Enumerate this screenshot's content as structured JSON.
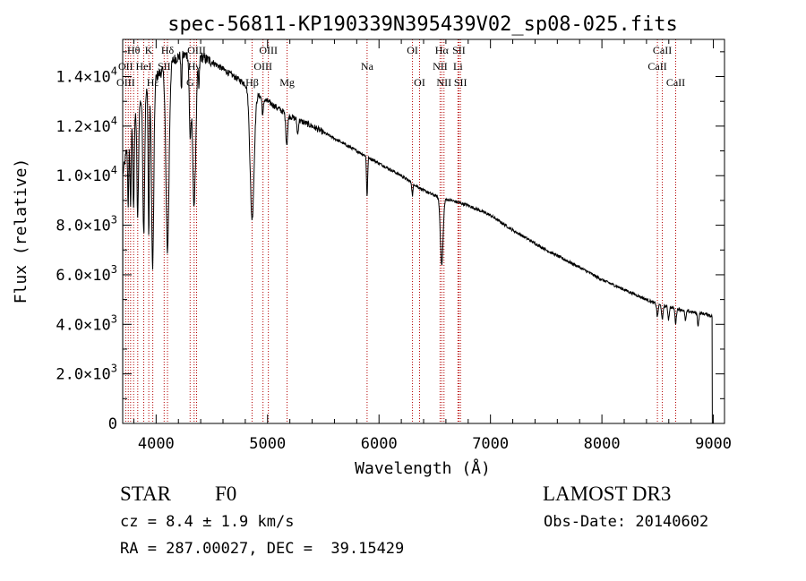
{
  "chart_data": {
    "type": "line",
    "title": "spec-56811-KP190339N395439V02_sp08-025.fits",
    "xlabel": "Wavelength (Å)",
    "ylabel": "Flux (relative)",
    "xlim": [
      3700,
      9100
    ],
    "ylim": [
      0,
      15500
    ],
    "x_ticks": [
      4000,
      5000,
      6000,
      7000,
      8000,
      9000
    ],
    "x_tick_labels": [
      "4000",
      "5000",
      "6000",
      "7000",
      "8000",
      "9000"
    ],
    "y_ticks": [
      0,
      2000,
      4000,
      6000,
      8000,
      10000,
      12000,
      14000
    ],
    "y_tick_labels": [
      {
        "mantissa": "0",
        "exp": ""
      },
      {
        "mantissa": "2.0×10",
        "exp": "3"
      },
      {
        "mantissa": "4.0×10",
        "exp": "3"
      },
      {
        "mantissa": "6.0×10",
        "exp": "3"
      },
      {
        "mantissa": "8.0×10",
        "exp": "3"
      },
      {
        "mantissa": "1.0×10",
        "exp": "4"
      },
      {
        "mantissa": "1.2×10",
        "exp": "4"
      },
      {
        "mantissa": "1.4×10",
        "exp": "4"
      }
    ],
    "continuum": [
      [
        3700,
        10000
      ],
      [
        3720,
        10600
      ],
      [
        3760,
        11600
      ],
      [
        3800,
        12400
      ],
      [
        3850,
        12900
      ],
      [
        3900,
        13300
      ],
      [
        3950,
        13600
      ],
      [
        4000,
        14000
      ],
      [
        4050,
        14200
      ],
      [
        4100,
        14500
      ],
      [
        4200,
        14800
      ],
      [
        4300,
        14900
      ],
      [
        4400,
        14800
      ],
      [
        4500,
        14600
      ],
      [
        4600,
        14300
      ],
      [
        4700,
        14000
      ],
      [
        4800,
        13700
      ],
      [
        4900,
        13300
      ],
      [
        5000,
        13000
      ],
      [
        5100,
        12700
      ],
      [
        5200,
        12400
      ],
      [
        5400,
        12000
      ],
      [
        5600,
        11500
      ],
      [
        5800,
        11000
      ],
      [
        6000,
        10500
      ],
      [
        6200,
        10000
      ],
      [
        6400,
        9400
      ],
      [
        6550,
        9100
      ],
      [
        6650,
        9000
      ],
      [
        6800,
        8800
      ],
      [
        7000,
        8400
      ],
      [
        7200,
        7800
      ],
      [
        7500,
        7000
      ],
      [
        7800,
        6300
      ],
      [
        8000,
        5800
      ],
      [
        8200,
        5400
      ],
      [
        8400,
        5000
      ],
      [
        8500,
        4800
      ],
      [
        8700,
        4600
      ],
      [
        8800,
        4500
      ],
      [
        8950,
        4400
      ],
      [
        9000,
        4300
      ]
    ],
    "absorption_features": [
      {
        "center": 3750,
        "depth": 2500,
        "width": 5
      },
      {
        "center": 3771,
        "depth": 3000,
        "width": 5
      },
      {
        "center": 3798,
        "depth": 3500,
        "width": 6
      },
      {
        "center": 3835,
        "depth": 4500,
        "width": 7
      },
      {
        "center": 3889,
        "depth": 5500,
        "width": 8
      },
      {
        "center": 3934,
        "depth": 6000,
        "width": 5
      },
      {
        "center": 3969,
        "depth": 7500,
        "width": 10
      },
      {
        "center": 4102,
        "depth": 7500,
        "width": 14
      },
      {
        "center": 4227,
        "depth": 1500,
        "width": 4
      },
      {
        "center": 4305,
        "depth": 3000,
        "width": 8
      },
      {
        "center": 4341,
        "depth": 6000,
        "width": 15
      },
      {
        "center": 4384,
        "depth": 1200,
        "width": 5
      },
      {
        "center": 4861,
        "depth": 5200,
        "width": 18
      },
      {
        "center": 4957,
        "depth": 700,
        "width": 6
      },
      {
        "center": 5172,
        "depth": 1200,
        "width": 8
      },
      {
        "center": 5270,
        "depth": 600,
        "width": 6
      },
      {
        "center": 5893,
        "depth": 1600,
        "width": 5
      },
      {
        "center": 6300,
        "depth": 500,
        "width": 5
      },
      {
        "center": 6563,
        "depth": 2700,
        "width": 12
      },
      {
        "center": 8498,
        "depth": 500,
        "width": 6
      },
      {
        "center": 8542,
        "depth": 600,
        "width": 6
      },
      {
        "center": 8598,
        "depth": 500,
        "width": 6
      },
      {
        "center": 8662,
        "depth": 600,
        "width": 6
      },
      {
        "center": 8750,
        "depth": 400,
        "width": 6
      },
      {
        "center": 8863,
        "depth": 500,
        "width": 6
      }
    ],
    "spectral_lines": [
      {
        "label": "Hθ",
        "wavelength": 3798,
        "row": 1
      },
      {
        "label": "OII",
        "wavelength": 3727,
        "row": 2
      },
      {
        "label": "OIII",
        "wavelength": 3727,
        "row": 3
      },
      {
        "label": "HeI",
        "wavelength": 3889,
        "row": 2
      },
      {
        "label": "K",
        "wavelength": 3934,
        "row": 1
      },
      {
        "label": "Hε",
        "wavelength": 3970,
        "row": 3
      },
      {
        "label": "Hδ",
        "wavelength": 4102,
        "row": 1
      },
      {
        "label": "SII",
        "wavelength": 4072,
        "row": 2
      },
      {
        "label": "OIII",
        "wavelength": 4363,
        "row": 1
      },
      {
        "label": "Hγ",
        "wavelength": 4341,
        "row": 2
      },
      {
        "label": "G",
        "wavelength": 4305,
        "row": 3
      },
      {
        "label": "OIII",
        "wavelength": 5007,
        "row": 1
      },
      {
        "label": "OIII",
        "wavelength": 4959,
        "row": 2
      },
      {
        "label": "Hβ",
        "wavelength": 4861,
        "row": 3
      },
      {
        "label": "Mg",
        "wavelength": 5175,
        "row": 3
      },
      {
        "label": "Na",
        "wavelength": 5893,
        "row": 2
      },
      {
        "label": "OI",
        "wavelength": 6300,
        "row": 1
      },
      {
        "label": "OI",
        "wavelength": 6364,
        "row": 3
      },
      {
        "label": "Hα",
        "wavelength": 6563,
        "row": 1
      },
      {
        "label": "SII",
        "wavelength": 6717,
        "row": 1
      },
      {
        "label": "NII",
        "wavelength": 6548,
        "row": 2
      },
      {
        "label": "Li",
        "wavelength": 6708,
        "row": 2
      },
      {
        "label": "NII",
        "wavelength": 6583,
        "row": 3
      },
      {
        "label": "SII",
        "wavelength": 6731,
        "row": 3
      },
      {
        "label": "CaII",
        "wavelength": 8542,
        "row": 1
      },
      {
        "label": "CaII",
        "wavelength": 8498,
        "row": 2
      },
      {
        "label": "CaII",
        "wavelength": 8662,
        "row": 3
      }
    ],
    "line_wavelengths": [
      3727,
      3750,
      3771,
      3798,
      3835,
      3889,
      3934,
      3970,
      4072,
      4102,
      4305,
      4341,
      4363,
      4861,
      4959,
      5007,
      5175,
      5893,
      6300,
      6364,
      6548,
      6563,
      6583,
      6708,
      6717,
      6731,
      8498,
      8542,
      8662
    ],
    "colors": {
      "spectrum": "#000000",
      "marker": "#b40000",
      "axis": "#000000"
    }
  },
  "info": {
    "object_class": "STAR",
    "subclass": "F0",
    "survey": "LAMOST DR3",
    "cz": "cz = 8.4 ± 1.9 km/s",
    "obs_date": "Obs-Date: 20140602",
    "coords": "RA = 287.00027, DEC =  39.15429"
  }
}
